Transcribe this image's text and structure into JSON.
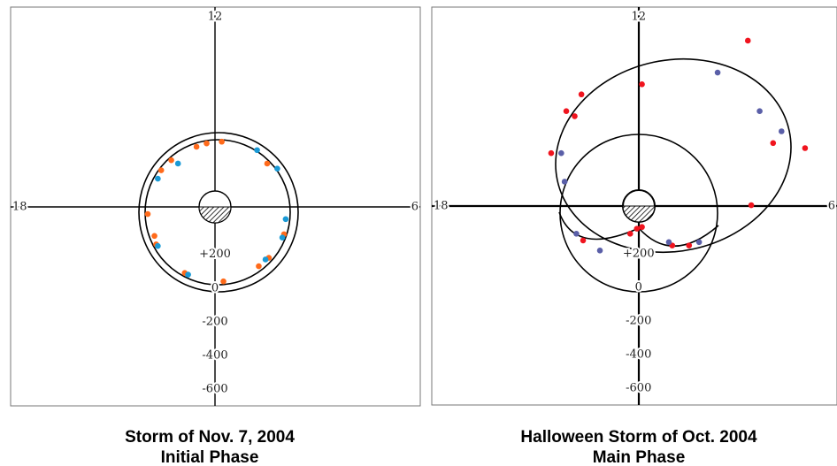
{
  "chart_data": [
    {
      "type": "scatter",
      "title": "Storm of Nov. 7, 2004",
      "subtitle": "Initial Phase",
      "dial_labels": {
        "top": "12",
        "left": "18",
        "right": "6"
      },
      "xlim": [
        -1215,
        1220
      ],
      "ylim": [
        -700,
        1670
      ],
      "yticks": [
        {
          "value": 200,
          "label": "+200"
        },
        0,
        -200,
        -400,
        -600
      ],
      "series": [
        {
          "color": "#ff6a1a",
          "x": [
            -50,
            40,
            -110,
            -260,
            -320,
            -400,
            -360,
            -350,
            -180,
            50,
            260,
            320,
            410,
            310
          ],
          "values": [
            860,
            870,
            840,
            760,
            700,
            440,
            310,
            260,
            90,
            40,
            130,
            180,
            320,
            740
          ]
        },
        {
          "color": "#1a9ad6",
          "x": [
            -220,
            -340,
            250,
            370,
            420,
            400,
            -340,
            -160,
            300
          ],
          "values": [
            740,
            650,
            820,
            710,
            410,
            300,
            250,
            80,
            170
          ]
        }
      ]
    },
    {
      "type": "scatter",
      "title": "Halloween Storm of Oct. 2004",
      "subtitle": "Main Phase",
      "dial_labels": {
        "top": "12",
        "left": "18",
        "right": "6"
      },
      "xlim": [
        -1230,
        1180
      ],
      "ylim": [
        -700,
        1670
      ],
      "yticks": [
        {
          "value": 200,
          "label": "+200"
        },
        0,
        -200,
        -400,
        -600
      ],
      "series": [
        {
          "color": "#f0141e",
          "x": [
            650,
            20,
            -340,
            -430,
            -380,
            -520,
            800,
            990,
            670,
            -10,
            -50,
            20,
            -330,
            200,
            300
          ],
          "values": [
            1470,
            1210,
            1150,
            1050,
            1020,
            800,
            860,
            830,
            490,
            350,
            320,
            360,
            280,
            250,
            250
          ]
        },
        {
          "color": "#5a5fa8",
          "x": [
            470,
            720,
            850,
            -460,
            -440,
            -370,
            -230,
            180,
            360
          ],
          "values": [
            1280,
            1050,
            930,
            800,
            630,
            320,
            220,
            270,
            270
          ]
        }
      ]
    }
  ]
}
